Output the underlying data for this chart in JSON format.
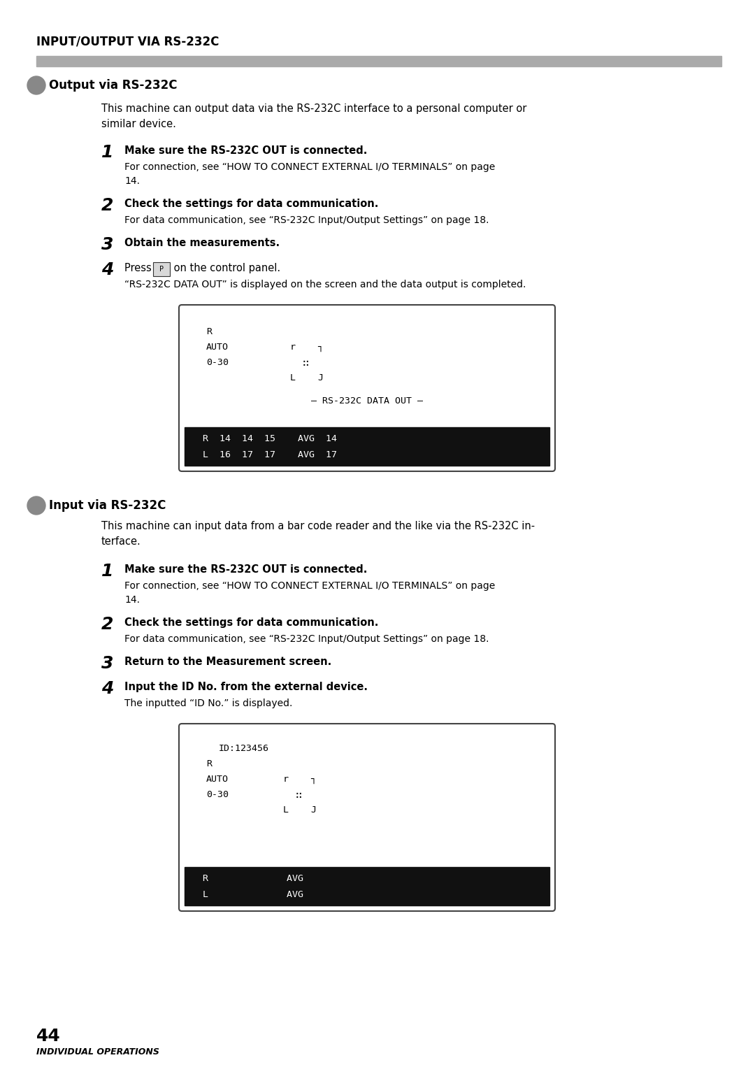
{
  "page_bg": "#ffffff",
  "header_title": "INPUT/OUTPUT VIA RS-232C",
  "header_bar_color": "#aaaaaa",
  "section1_title": "Output via RS-232C",
  "section1_bullet_color": "#777777",
  "section1_intro_lines": [
    "This machine can output data via the RS-232C interface to a personal computer or",
    "similar device."
  ],
  "section1_steps": [
    {
      "num": "1",
      "bold": "Make sure the RS-232C OUT is connected.",
      "normal_lines": [
        "For connection, see “HOW TO CONNECT EXTERNAL I/O TERMINALS” on page",
        "14."
      ]
    },
    {
      "num": "2",
      "bold": "Check the settings for data communication.",
      "normal_lines": [
        "For data communication, see “RS-232C Input/Output Settings” on page 18."
      ]
    },
    {
      "num": "3",
      "bold": "Obtain the measurements.",
      "normal_lines": []
    },
    {
      "num": "4",
      "bold_parts": [
        "Press ",
        " on the control panel."
      ],
      "has_button": true,
      "button_label": "P",
      "normal_lines": [
        "“RS-232C DATA OUT” is displayed on the screen and the data output is completed."
      ]
    }
  ],
  "screen1": {
    "top_lines": [
      "R",
      "AUTO",
      "0-30"
    ],
    "bracket_r_top": "r    ┐",
    "bracket_cross": "∷",
    "bracket_r_bot": "L    J",
    "mid_line": "— RS-232C DATA OUT —",
    "bot_lines": [
      "R  14  14  15    AVG  14",
      "L  16  17  17    AVG  17"
    ]
  },
  "section2_title": "Input via RS-232C",
  "section2_bullet_color": "#777777",
  "section2_intro_lines": [
    "This machine can input data from a bar code reader and the like via the RS-232C in-",
    "terface."
  ],
  "section2_steps": [
    {
      "num": "1",
      "bold": "Make sure the RS-232C OUT is connected.",
      "normal_lines": [
        "For connection, see “HOW TO CONNECT EXTERNAL I/O TERMINALS” on page",
        "14."
      ]
    },
    {
      "num": "2",
      "bold": "Check the settings for data communication.",
      "normal_lines": [
        "For data communication, see “RS-232C Input/Output Settings” on page 18."
      ]
    },
    {
      "num": "3",
      "bold": "Return to the Measurement screen.",
      "normal_lines": []
    },
    {
      "num": "4",
      "bold": "Input the ID No. from the external device.",
      "normal_lines": [
        "The inputted “ID No.” is displayed."
      ]
    }
  ],
  "screen2": {
    "top_lines": [
      "ID:123456",
      "R",
      "AUTO",
      "0-30"
    ],
    "bracket_r_top": "r    ┐",
    "bracket_cross": "∷",
    "bracket_r_bot": "L    J",
    "bot_lines": [
      "R              AVG",
      "L              AVG"
    ]
  },
  "footer_page": "44",
  "footer_text": "INDIVIDUAL OPERATIONS"
}
